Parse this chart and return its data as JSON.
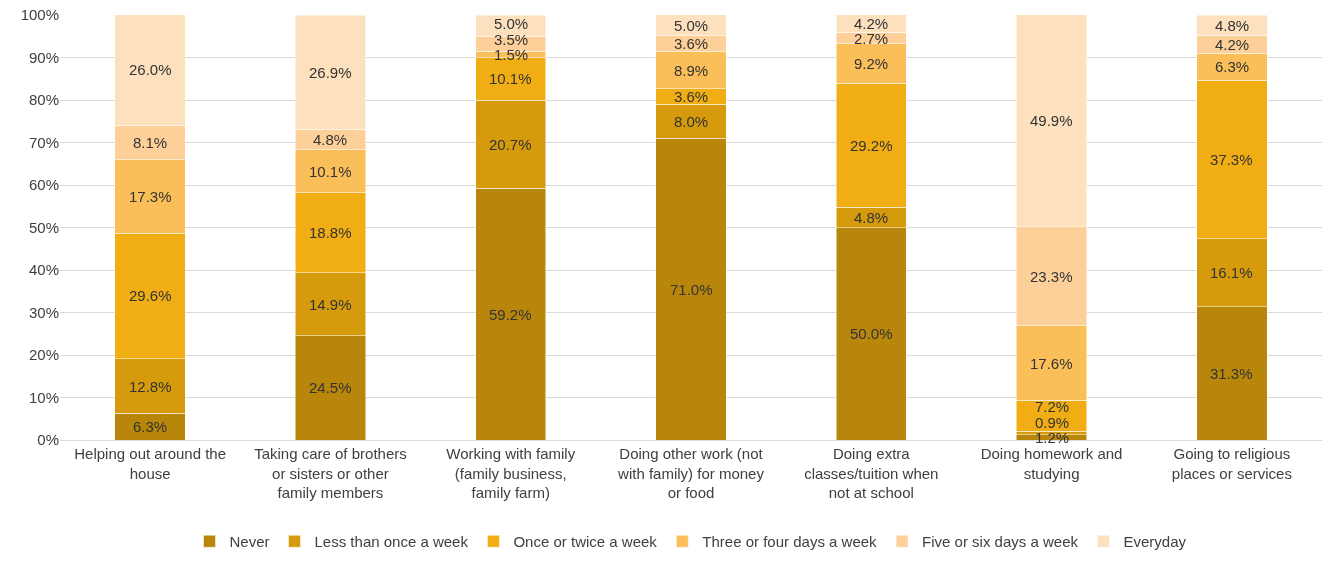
{
  "chart_data": {
    "type": "bar",
    "stacked": true,
    "grid": "y",
    "legend": "bottom",
    "categories": [
      "Helping out around the house",
      "Taking care of brothers or sisters or other family members",
      "Working with family (family business, family farm)",
      "Doing other work (not with family) for money or food",
      "Doing extra classes/tuition when not at school",
      "Doing homework and studying",
      "Going to religious places or services"
    ],
    "ylim": [
      0,
      100
    ],
    "yticks": [
      {
        "value": 0,
        "label": "0%"
      },
      {
        "value": 10,
        "label": "10%"
      },
      {
        "value": 20,
        "label": "20%"
      },
      {
        "value": 30,
        "label": "30%"
      },
      {
        "value": 40,
        "label": "40%"
      },
      {
        "value": 50,
        "label": "50%"
      },
      {
        "value": 60,
        "label": "60%"
      },
      {
        "value": 70,
        "label": "70%"
      },
      {
        "value": 80,
        "label": "80%"
      },
      {
        "value": 90,
        "label": "90%"
      },
      {
        "value": 100,
        "label": "100%"
      }
    ],
    "series": [
      {
        "name": "Never",
        "color": "#b8860b",
        "values": [
          6.3,
          24.5,
          59.2,
          71.0,
          50.0,
          1.2,
          31.3
        ],
        "value_labels": [
          "6.3%",
          "24.5%",
          "59.2%",
          "71.0%",
          "50.0%",
          "1.2%",
          "31.3%"
        ]
      },
      {
        "name": "Less than once a week",
        "color": "#d59b0c",
        "values": [
          12.8,
          14.9,
          20.7,
          8.0,
          4.8,
          0.9,
          16.1
        ],
        "value_labels": [
          "12.8%",
          "14.9%",
          "20.7%",
          "8.0%",
          "4.8%",
          "0.9%",
          "16.1%"
        ]
      },
      {
        "name": "Once or twice a week",
        "color": "#f0ad14",
        "values": [
          29.6,
          18.8,
          10.1,
          3.6,
          29.2,
          7.2,
          37.3
        ],
        "value_labels": [
          "29.6%",
          "18.8%",
          "10.1%",
          "3.6%",
          "29.2%",
          "7.2%",
          "37.3%"
        ]
      },
      {
        "name": "Three or four days a week",
        "color": "#fbbf5a",
        "values": [
          17.3,
          10.1,
          1.5,
          8.9,
          9.2,
          17.6,
          6.3
        ],
        "value_labels": [
          "17.3%",
          "10.1%",
          "1.5%",
          "8.9%",
          "9.2%",
          "17.6%",
          "6.3%"
        ]
      },
      {
        "name": "Five or six days a week",
        "color": "#fdd09a",
        "values": [
          8.1,
          4.8,
          3.5,
          3.6,
          2.7,
          23.3,
          4.2
        ],
        "value_labels": [
          "8.1%",
          "4.8%",
          "3.5%",
          "3.6%",
          "2.7%",
          "23.3%",
          "4.2%"
        ]
      },
      {
        "name": "Everyday",
        "color": "#fde0bd",
        "values": [
          26.0,
          26.9,
          5.0,
          5.0,
          4.2,
          49.9,
          4.8
        ],
        "value_labels": [
          "26.0%",
          "26.9%",
          "5.0%",
          "5.0%",
          "4.2%",
          "49.9%",
          "4.8%"
        ]
      }
    ]
  }
}
